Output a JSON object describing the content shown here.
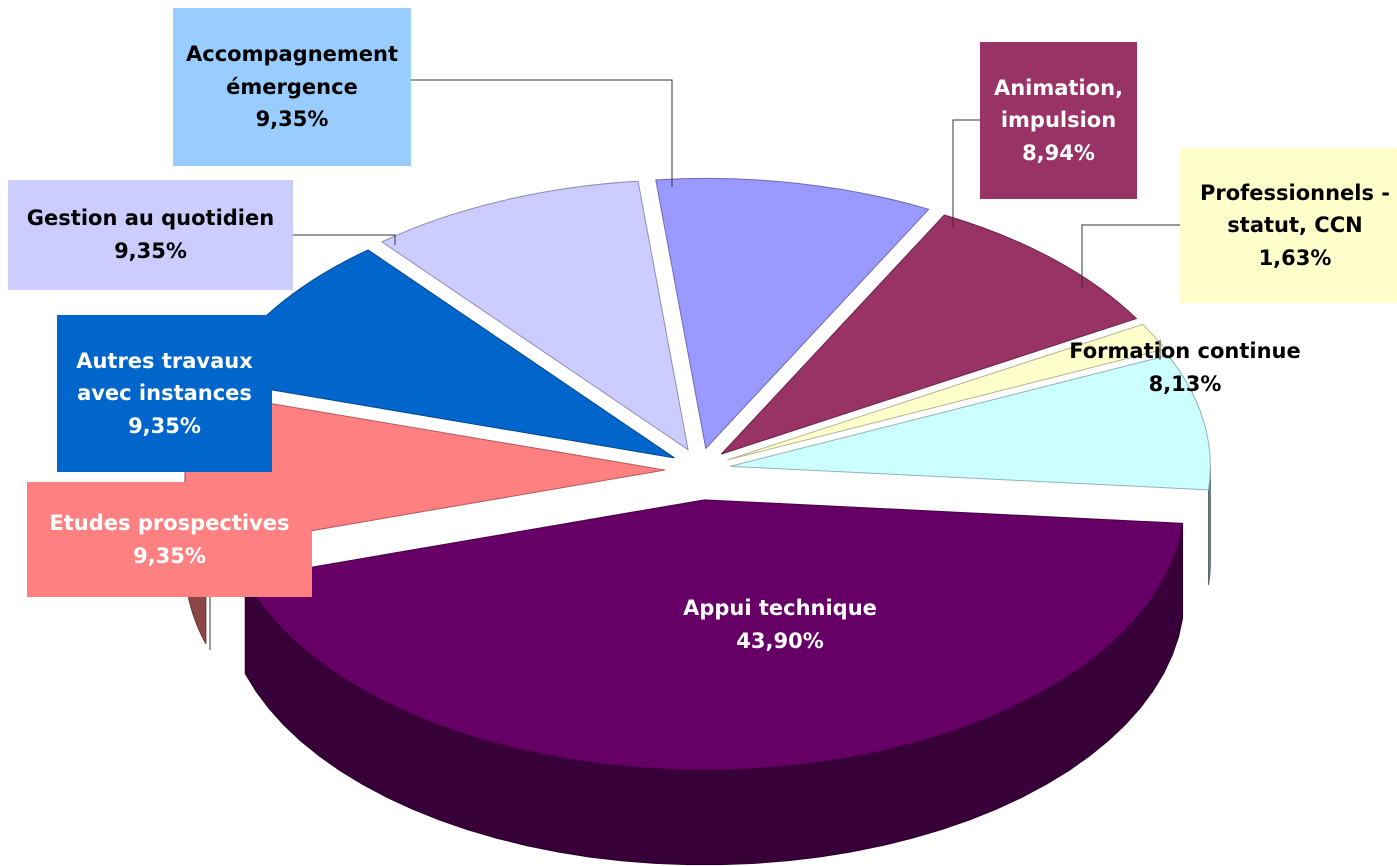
{
  "chart_data": {
    "type": "pie",
    "categories": [
      "Appui technique",
      "Etudes prospectives",
      "Autres travaux avec instances",
      "Gestion au quotidien",
      "Accompagnement émergence",
      "Animation, impulsion",
      "Professionnels - statut, CCN",
      "Formation continue"
    ],
    "values": [
      43.9,
      9.35,
      9.35,
      9.35,
      9.35,
      8.94,
      1.63,
      8.13
    ],
    "value_labels": [
      "43,90%",
      "9,35%",
      "9,35%",
      "9,35%",
      "9,35%",
      "8,94%",
      "1,63%",
      "8,13%"
    ],
    "colors": [
      "#660066",
      "#ff8080",
      "#0066cc",
      "#ccccff",
      "#9999ff",
      "#993366",
      "#ffffcc",
      "#ccffff"
    ],
    "label_backgrounds": [
      null,
      "#ff8080",
      "#0066cc",
      "#ccccff",
      "#99ccff",
      "#993366",
      "#ffffcc",
      null
    ]
  }
}
